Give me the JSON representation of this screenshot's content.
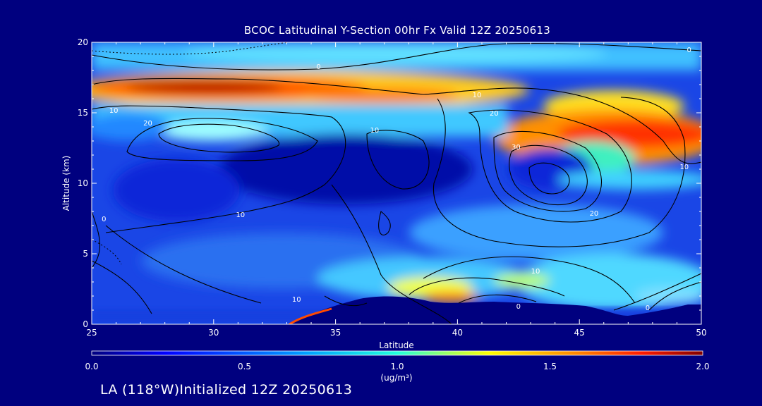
{
  "title": "BCOC Latitudinal Y-Section 00hr  Fx Valid 12Z 20250613",
  "footer": "LA (118°W)Initialized 12Z 20250613",
  "chart_data": {
    "type": "heatmap",
    "title": "BCOC Latitudinal Y-Section 00hr  Fx Valid 12Z 20250613",
    "xlabel": "Latitude",
    "ylabel": "Altitude (km)",
    "xlim": [
      25,
      50
    ],
    "ylim": [
      0,
      20
    ],
    "x_ticks": [
      25,
      30,
      35,
      40,
      45,
      50
    ],
    "y_ticks": [
      0,
      5,
      10,
      15,
      20
    ],
    "colorbar": {
      "label": "(ug/m³)",
      "range": [
        0.0,
        2.0
      ],
      "ticks": [
        "0.0",
        "0.5",
        "1.0",
        "1.5",
        "2.0"
      ]
    },
    "contour_labels": [
      {
        "text": "0",
        "lat": 34.3,
        "alt": 18.3
      },
      {
        "text": "0",
        "lat": 49.5,
        "alt": 19.5
      },
      {
        "text": "10",
        "lat": 25.9,
        "alt": 15.2
      },
      {
        "text": "10",
        "lat": 40.8,
        "alt": 16.3
      },
      {
        "text": "10",
        "lat": 36.6,
        "alt": 13.8
      },
      {
        "text": "10",
        "lat": 49.3,
        "alt": 11.2
      },
      {
        "text": "10",
        "lat": 31.1,
        "alt": 7.8
      },
      {
        "text": "10",
        "lat": 43.2,
        "alt": 3.8
      },
      {
        "text": "10",
        "lat": 33.4,
        "alt": 1.8
      },
      {
        "text": "20",
        "lat": 27.3,
        "alt": 14.3
      },
      {
        "text": "20",
        "lat": 41.5,
        "alt": 15.0
      },
      {
        "text": "20",
        "lat": 45.6,
        "alt": 7.9
      },
      {
        "text": "30",
        "lat": 42.4,
        "alt": 12.6
      },
      {
        "text": "0",
        "lat": 25.5,
        "alt": 7.5
      },
      {
        "text": "0",
        "lat": 47.8,
        "alt": 1.2
      },
      {
        "text": "0",
        "lat": 42.5,
        "alt": 1.3
      }
    ],
    "data_description": [
      {
        "feature": "upper layer peak",
        "lat_range": [
          26,
          33
        ],
        "alt_range": [
          16,
          18
        ],
        "value": 1.9
      },
      {
        "feature": "upper layer",
        "lat_range": [
          33,
          41
        ],
        "alt_range": [
          15,
          17
        ],
        "value": 1.4
      },
      {
        "feature": "tilted layer peak",
        "lat_range": [
          45,
          50
        ],
        "alt_range": [
          12,
          14
        ],
        "value": 1.7
      },
      {
        "feature": "mid-level core",
        "lat_range": [
          32,
          40
        ],
        "alt_range": [
          8,
          12
        ],
        "value": 0.1
      },
      {
        "feature": "surface plume",
        "lat_range": [
          38,
          42
        ],
        "alt_range": [
          1,
          3
        ],
        "value": 1.5
      }
    ]
  }
}
